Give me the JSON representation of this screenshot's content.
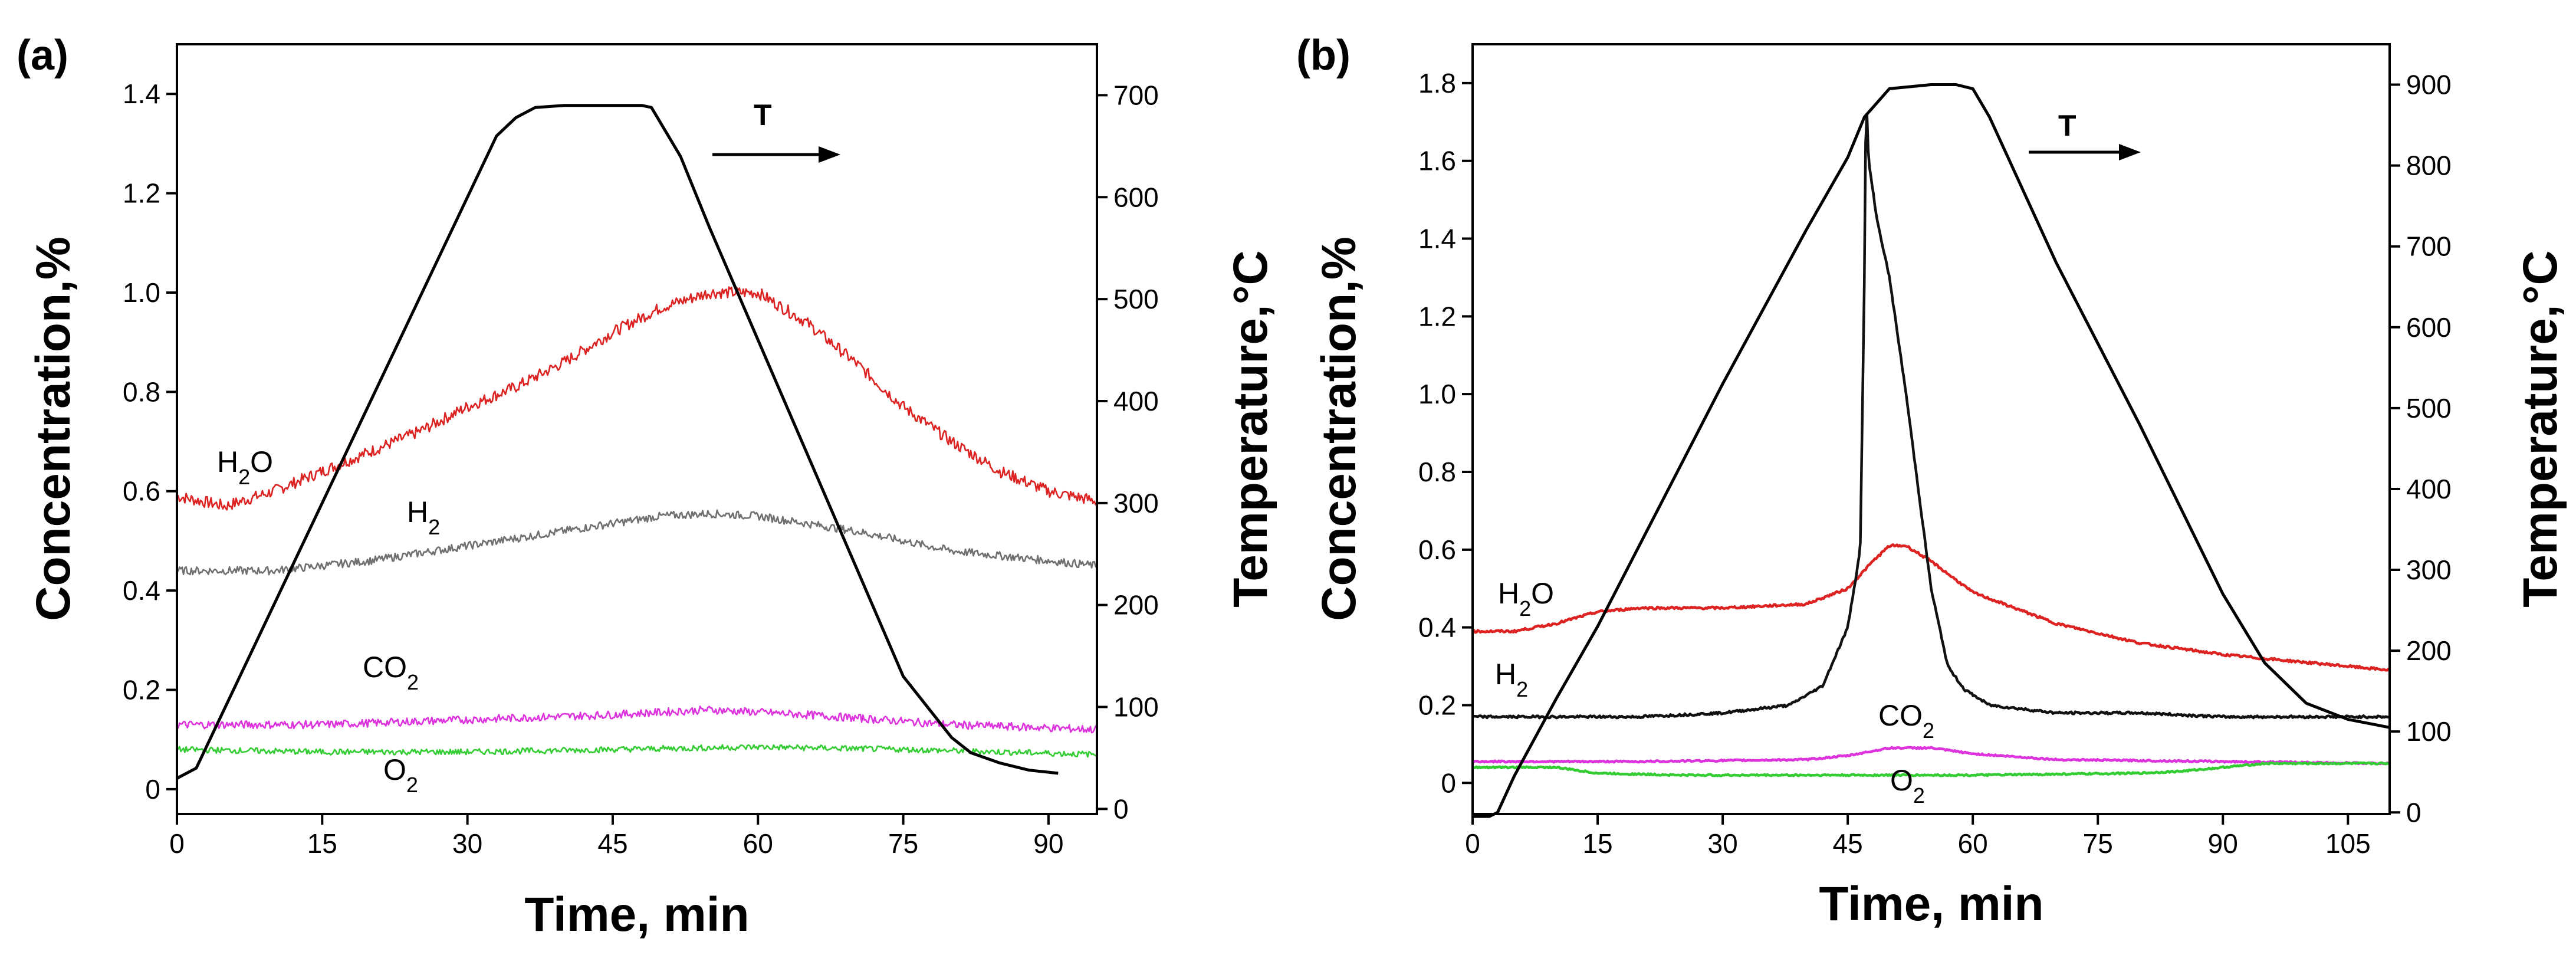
{
  "chart_data": [
    {
      "panel": "(a)",
      "type": "line",
      "xlabel": "Time, min",
      "ylabel": "Concentration,%",
      "y2label": "Temperature,°C",
      "xlim": [
        0,
        95
      ],
      "ylim": [
        -0.05,
        1.5
      ],
      "y2lim": [
        -5,
        750
      ],
      "xticks": [
        0,
        15,
        30,
        45,
        60,
        75,
        90
      ],
      "yticks": [
        0,
        0.2,
        0.4,
        0.6,
        0.8,
        1.0,
        1.2,
        1.4
      ],
      "ytick_labels": [
        "0",
        "0.2",
        "0.4",
        "0.6",
        "0.8",
        "1.0",
        "1.2",
        "1.4"
      ],
      "y2ticks": [
        0,
        100,
        200,
        300,
        400,
        500,
        600,
        700
      ],
      "series": [
        {
          "name": "H2O",
          "label_main": "H",
          "label_sub": "2",
          "label_tail": "O",
          "color": "#dd2222",
          "noise": 0.012,
          "x": [
            0,
            5,
            10,
            15,
            20,
            25,
            30,
            35,
            40,
            45,
            50,
            55,
            60,
            65,
            70,
            75,
            80,
            85,
            90,
            95
          ],
          "y": [
            0.59,
            0.57,
            0.6,
            0.64,
            0.68,
            0.72,
            0.77,
            0.81,
            0.86,
            0.92,
            0.97,
            1.0,
            1.0,
            0.94,
            0.86,
            0.77,
            0.7,
            0.64,
            0.6,
            0.58
          ]
        },
        {
          "name": "H2",
          "label_main": "H",
          "label_sub": "2",
          "label_tail": "",
          "color": "#707070",
          "noise": 0.008,
          "x": [
            0,
            10,
            20,
            30,
            40,
            50,
            55,
            60,
            70,
            80,
            90,
            95
          ],
          "y": [
            0.44,
            0.44,
            0.46,
            0.49,
            0.52,
            0.55,
            0.555,
            0.55,
            0.52,
            0.48,
            0.46,
            0.45
          ]
        },
        {
          "name": "CO2",
          "label_main": "CO",
          "label_sub": "2",
          "label_tail": "",
          "color": "#dd33dd",
          "noise": 0.008,
          "x": [
            0,
            15,
            30,
            45,
            55,
            65,
            80,
            95
          ],
          "y": [
            0.13,
            0.13,
            0.14,
            0.15,
            0.16,
            0.15,
            0.13,
            0.12
          ]
        },
        {
          "name": "O2",
          "label_main": "O",
          "label_sub": "2",
          "label_tail": "",
          "color": "#33cc33",
          "noise": 0.006,
          "x": [
            0,
            15,
            30,
            45,
            60,
            75,
            95
          ],
          "y": [
            0.08,
            0.075,
            0.075,
            0.08,
            0.085,
            0.08,
            0.07
          ]
        },
        {
          "name": "T",
          "axis": "right",
          "color": "#000000",
          "x": [
            0,
            2,
            5,
            10,
            15,
            20,
            25,
            30,
            33,
            35,
            37,
            40,
            45,
            48,
            49,
            52,
            55,
            60,
            65,
            70,
            75,
            80,
            82,
            85,
            88,
            91
          ],
          "y": [
            30,
            40,
            100,
            200,
            300,
            400,
            500,
            600,
            660,
            678,
            688,
            690,
            690,
            690,
            688,
            640,
            570,
            460,
            350,
            240,
            130,
            70,
            55,
            45,
            38,
            35
          ]
        }
      ],
      "annotations": {
        "t_label": "T"
      }
    },
    {
      "panel": "(b)",
      "type": "line",
      "xlabel": "Time, min",
      "ylabel": "Concentration,%",
      "y2label": "Temperature,°C",
      "xlim": [
        0,
        110
      ],
      "ylim": [
        -0.08,
        1.9
      ],
      "y2lim": [
        -2,
        950
      ],
      "xticks": [
        0,
        15,
        30,
        45,
        60,
        75,
        90,
        105
      ],
      "yticks": [
        0,
        0.2,
        0.4,
        0.6,
        0.8,
        1.0,
        1.2,
        1.4,
        1.6,
        1.8
      ],
      "ytick_labels": [
        "0",
        "0.2",
        "0.4",
        "0.6",
        "0.8",
        "1.0",
        "1.2",
        "1.4",
        "1.6",
        "1.8"
      ],
      "y2ticks": [
        0,
        100,
        200,
        300,
        400,
        500,
        600,
        700,
        800,
        900
      ],
      "series": [
        {
          "name": "H2O",
          "label_main": "H",
          "label_sub": "2",
          "label_tail": "O",
          "color": "#dd2222",
          "noise": 0.003,
          "x": [
            0,
            5,
            10,
            15,
            20,
            30,
            40,
            45,
            48,
            50,
            52,
            55,
            60,
            70,
            80,
            90,
            100,
            110
          ],
          "y": [
            0.39,
            0.39,
            0.41,
            0.44,
            0.45,
            0.45,
            0.46,
            0.5,
            0.57,
            0.61,
            0.61,
            0.57,
            0.49,
            0.41,
            0.36,
            0.33,
            0.31,
            0.29
          ]
        },
        {
          "name": "H2",
          "label_main": "H",
          "label_sub": "2",
          "label_tail": "",
          "color": "#111111",
          "noise": 0.003,
          "x": [
            0,
            10,
            20,
            30,
            38,
            42,
            45,
            46.5,
            47,
            47.2,
            47.5,
            48.5,
            50,
            52,
            55,
            57,
            59,
            62,
            70,
            80,
            90,
            100,
            110
          ],
          "y": [
            0.17,
            0.17,
            0.17,
            0.18,
            0.2,
            0.25,
            0.4,
            0.6,
            1.3,
            1.78,
            1.6,
            1.45,
            1.3,
            1.0,
            0.5,
            0.3,
            0.24,
            0.2,
            0.18,
            0.18,
            0.17,
            0.17,
            0.17
          ]
        },
        {
          "name": "CO2",
          "label_main": "CO",
          "label_sub": "2",
          "label_tail": "",
          "color": "#dd33dd",
          "noise": 0.002,
          "x": [
            0,
            20,
            40,
            45,
            50,
            55,
            60,
            70,
            90,
            110
          ],
          "y": [
            0.055,
            0.055,
            0.06,
            0.07,
            0.09,
            0.09,
            0.075,
            0.06,
            0.055,
            0.05
          ]
        },
        {
          "name": "O2",
          "label_main": "O",
          "label_sub": "2",
          "label_tail": "",
          "color": "#33cc33",
          "noise": 0.002,
          "x": [
            0,
            10,
            15,
            25,
            40,
            60,
            80,
            85,
            95,
            110
          ],
          "y": [
            0.04,
            0.04,
            0.025,
            0.02,
            0.02,
            0.02,
            0.025,
            0.03,
            0.05,
            0.05
          ]
        },
        {
          "name": "T",
          "axis": "right",
          "color": "#000000",
          "x": [
            0,
            2,
            3,
            5,
            10,
            15,
            20,
            30,
            40,
            45,
            47,
            50,
            55,
            58,
            60,
            62,
            70,
            80,
            90,
            95,
            100,
            105,
            110
          ],
          "y": [
            -5,
            -5,
            0,
            45,
            140,
            230,
            330,
            530,
            720,
            810,
            860,
            895,
            900,
            900,
            895,
            860,
            680,
            480,
            270,
            185,
            135,
            115,
            105
          ]
        }
      ],
      "annotations": {
        "t_label": "T"
      }
    }
  ]
}
